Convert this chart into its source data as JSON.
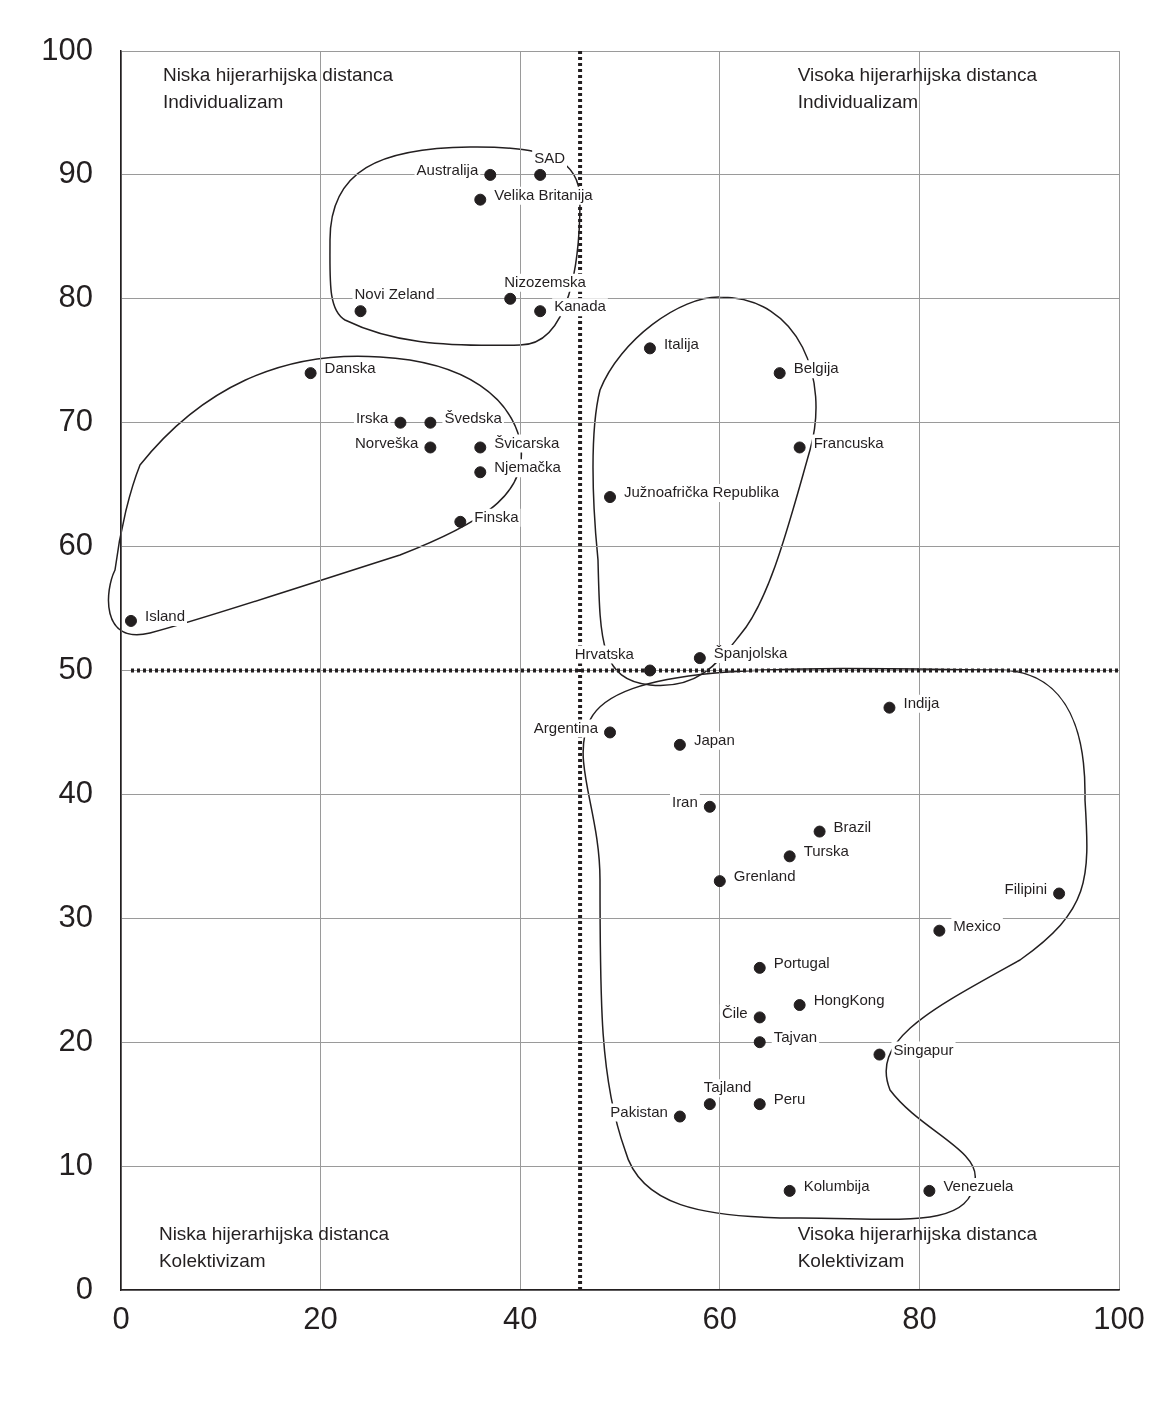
{
  "chart_data": {
    "type": "scatter",
    "xlim": [
      0,
      100
    ],
    "xticks": [
      0,
      20,
      40,
      60,
      80,
      100
    ],
    "ylim": [
      0,
      100
    ],
    "yticks": [
      0,
      10,
      20,
      30,
      40,
      50,
      60,
      70,
      80,
      90,
      100
    ],
    "grid": true,
    "legend": false,
    "marker": "circle",
    "ref_lines": [
      {
        "axis": "x",
        "value": 46,
        "line_style": "dotted",
        "color": "#231f20"
      },
      {
        "axis": "y",
        "value": 50,
        "line_style": "dotted",
        "color": "#231f20"
      }
    ],
    "annotations": [
      "Niska hijerarhijska distanca\nIndividualizam",
      "Visoka hijerarhijska distanca\nIndividualizam",
      "Niska hijerarhijska distanca\nKolektivizam",
      "Visoka hijerarhijska distanca\nKolektivizam"
    ],
    "series": [
      {
        "name": "Australija",
        "color": "#231f20",
        "x": [
          37
        ],
        "values": [
          90
        ]
      },
      {
        "name": "SAD",
        "color": "#231f20",
        "x": [
          42
        ],
        "values": [
          90
        ]
      },
      {
        "name": "Velika Britanija",
        "color": "#231f20",
        "x": [
          36
        ],
        "values": [
          88
        ]
      },
      {
        "name": "Nizozemska",
        "color": "#231f20",
        "x": [
          39
        ],
        "values": [
          80
        ]
      },
      {
        "name": "Kanada",
        "color": "#231f20",
        "x": [
          42
        ],
        "values": [
          79
        ]
      },
      {
        "name": "Novi Zeland",
        "color": "#231f20",
        "x": [
          24
        ],
        "values": [
          79
        ]
      },
      {
        "name": "Danska",
        "color": "#231f20",
        "x": [
          19
        ],
        "values": [
          74
        ]
      },
      {
        "name": "Irska",
        "color": "#231f20",
        "x": [
          28
        ],
        "values": [
          70
        ]
      },
      {
        "name": "Švedska",
        "color": "#231f20",
        "x": [
          31
        ],
        "values": [
          70
        ]
      },
      {
        "name": "Norveška",
        "color": "#231f20",
        "x": [
          31
        ],
        "values": [
          68
        ]
      },
      {
        "name": "Švicarska",
        "color": "#231f20",
        "x": [
          36
        ],
        "values": [
          68
        ]
      },
      {
        "name": "Njemačka",
        "color": "#231f20",
        "x": [
          36
        ],
        "values": [
          66
        ]
      },
      {
        "name": "Finska",
        "color": "#231f20",
        "x": [
          34
        ],
        "values": [
          62
        ]
      },
      {
        "name": "Island",
        "color": "#231f20",
        "x": [
          1
        ],
        "values": [
          54
        ]
      },
      {
        "name": "Italija",
        "color": "#231f20",
        "x": [
          53
        ],
        "values": [
          76
        ]
      },
      {
        "name": "Belgija",
        "color": "#231f20",
        "x": [
          66
        ],
        "values": [
          74
        ]
      },
      {
        "name": "Francuska",
        "color": "#231f20",
        "x": [
          68
        ],
        "values": [
          68
        ]
      },
      {
        "name": "Južnoafrička Republika",
        "color": "#231f20",
        "x": [
          49
        ],
        "values": [
          64
        ]
      },
      {
        "name": "Hrvatska",
        "color": "#231f20",
        "x": [
          53
        ],
        "values": [
          50
        ]
      },
      {
        "name": "Španjolska",
        "color": "#231f20",
        "x": [
          58
        ],
        "values": [
          51
        ]
      },
      {
        "name": "Argentina",
        "color": "#231f20",
        "x": [
          49
        ],
        "values": [
          45
        ]
      },
      {
        "name": "Japan",
        "color": "#231f20",
        "x": [
          56
        ],
        "values": [
          44
        ]
      },
      {
        "name": "Indija",
        "color": "#231f20",
        "x": [
          77
        ],
        "values": [
          47
        ]
      },
      {
        "name": "Iran",
        "color": "#231f20",
        "x": [
          59
        ],
        "values": [
          39
        ]
      },
      {
        "name": "Brazil",
        "color": "#231f20",
        "x": [
          70
        ],
        "values": [
          37
        ]
      },
      {
        "name": "Turska",
        "color": "#231f20",
        "x": [
          67
        ],
        "values": [
          35
        ]
      },
      {
        "name": "Grenland",
        "color": "#231f20",
        "x": [
          60
        ],
        "values": [
          33
        ]
      },
      {
        "name": "Filipini",
        "color": "#231f20",
        "x": [
          94
        ],
        "values": [
          32
        ]
      },
      {
        "name": "Mexico",
        "color": "#231f20",
        "x": [
          82
        ],
        "values": [
          29
        ]
      },
      {
        "name": "Portugal",
        "color": "#231f20",
        "x": [
          64
        ],
        "values": [
          26
        ]
      },
      {
        "name": "HongKong",
        "color": "#231f20",
        "x": [
          68
        ],
        "values": [
          23
        ]
      },
      {
        "name": "Čile",
        "color": "#231f20",
        "x": [
          64
        ],
        "values": [
          22
        ]
      },
      {
        "name": "Tajvan",
        "color": "#231f20",
        "x": [
          64
        ],
        "values": [
          20
        ]
      },
      {
        "name": "Singapur",
        "color": "#231f20",
        "x": [
          76
        ],
        "values": [
          19
        ]
      },
      {
        "name": "Tajland",
        "color": "#231f20",
        "x": [
          59
        ],
        "values": [
          15
        ]
      },
      {
        "name": "Peru",
        "color": "#231f20",
        "x": [
          64
        ],
        "values": [
          15
        ]
      },
      {
        "name": "Pakistan",
        "color": "#231f20",
        "x": [
          56
        ],
        "values": [
          14
        ]
      },
      {
        "name": "Kolumbija",
        "color": "#231f20",
        "x": [
          67
        ],
        "values": [
          8
        ]
      },
      {
        "name": "Venezuela",
        "color": "#231f20",
        "x": [
          81
        ],
        "values": [
          8
        ]
      }
    ]
  }
}
